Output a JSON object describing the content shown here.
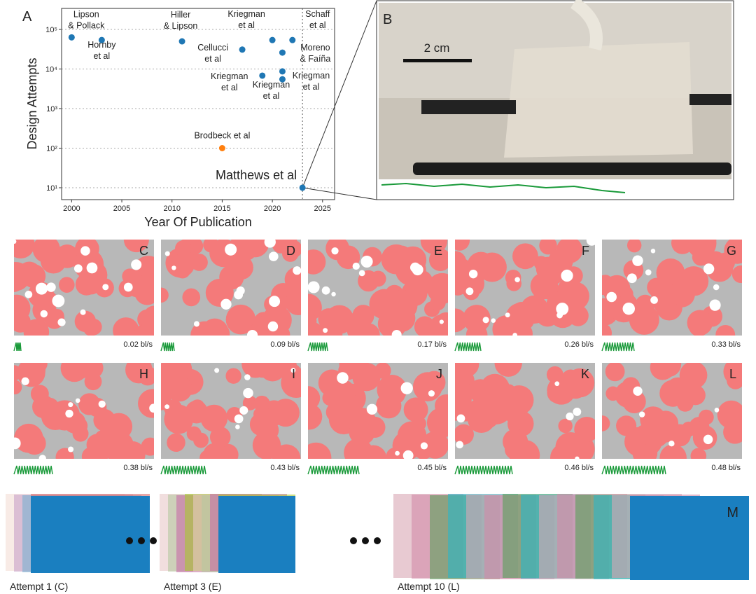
{
  "chart_data": {
    "type": "scatter",
    "panel": "A",
    "xlabel": "Year Of Publication",
    "ylabel": "Design Attempts",
    "xlim": [
      1999,
      2026.2
    ],
    "xticks": [
      2000,
      2005,
      2010,
      2015,
      2020,
      2025
    ],
    "ylim": [
      5,
      340000
    ],
    "log_y": true,
    "grid": true,
    "yticks": [
      {
        "value": 10,
        "label": "10¹"
      },
      {
        "value": 100,
        "label": "10²"
      },
      {
        "value": 1000,
        "label": "10³"
      },
      {
        "value": 10000,
        "label": "10⁴"
      },
      {
        "value": 100000,
        "label": "10⁵"
      }
    ],
    "series": [
      {
        "color": "#1f77b4",
        "x": [
          2000,
          2003,
          2011,
          2017,
          2019,
          2020,
          2022,
          2021,
          2021,
          2021,
          2023
        ],
        "values": [
          63000,
          54000,
          50000,
          31000,
          6800,
          54000,
          54000,
          26000,
          8700,
          5500,
          10
        ],
        "labels": [
          "Lipson\n& Pollack",
          "Hornby\net al",
          "Hiller\n& Lipson",
          "Cellucci\net al",
          "Kriegman\net al",
          "Kriegman\net al",
          "Schaff\net al",
          "Moreno\n& Faíña",
          "Kriegman\net al",
          "Kriegman\net al",
          "Matthews et al"
        ]
      },
      {
        "color": "#ff7f0e",
        "x": [
          2015
        ],
        "values": [
          100
        ],
        "labels": [
          "Brodbeck et al"
        ]
      }
    ]
  },
  "photo": {
    "panel": "B",
    "scale": "2 cm"
  },
  "simulations": [
    {
      "panel": "C",
      "speed": "0.02 bl/s"
    },
    {
      "panel": "D",
      "speed": "0.09 bl/s"
    },
    {
      "panel": "E",
      "speed": "0.17 bl/s"
    },
    {
      "panel": "F",
      "speed": "0.26 bl/s"
    },
    {
      "panel": "G",
      "speed": "0.33 bl/s"
    },
    {
      "panel": "H",
      "speed": "0.38 bl/s"
    },
    {
      "panel": "I",
      "speed": "0.43 bl/s"
    },
    {
      "panel": "J",
      "speed": "0.45 bl/s"
    },
    {
      "panel": "K",
      "speed": "0.46 bl/s"
    },
    {
      "panel": "L",
      "speed": "0.48 bl/s"
    }
  ],
  "attempts": {
    "panel": "M",
    "labels": [
      "Attempt 1 (C)",
      "Attempt 3 (E)",
      "Attempt 10 (L)"
    ]
  }
}
